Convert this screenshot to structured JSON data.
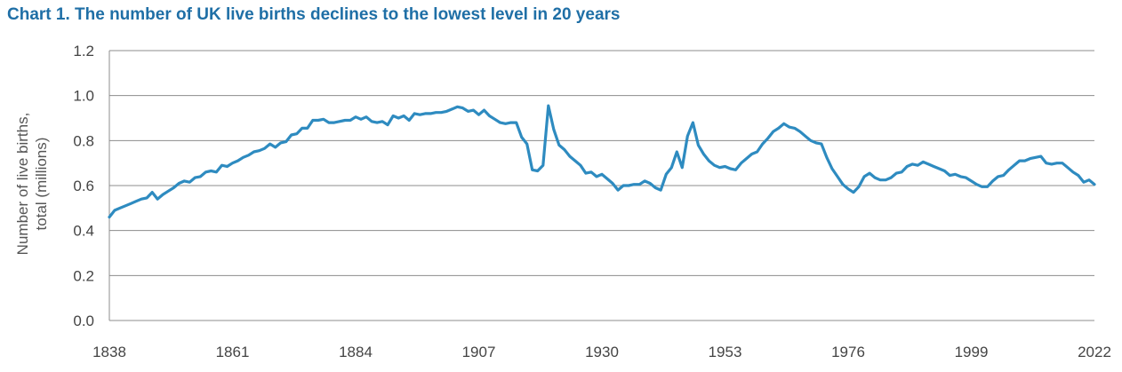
{
  "chart_data": {
    "type": "line",
    "title": "Chart 1. The number of UK live births declines to the lowest level in 20 years",
    "xlabel": "",
    "ylabel_lines": [
      "Number of live births,",
      "total (millions)"
    ],
    "xlim": [
      1838,
      2022
    ],
    "ylim": [
      0,
      1.2
    ],
    "x_ticks": [
      1838,
      1861,
      1884,
      1907,
      1930,
      1953,
      1976,
      1999,
      2022
    ],
    "y_ticks": [
      0.0,
      0.2,
      0.4,
      0.6,
      0.8,
      1.0,
      1.2
    ],
    "y_tick_labels": [
      "0.0",
      "0.2",
      "0.4",
      "0.6",
      "0.8",
      "1.0",
      "1.2"
    ],
    "grid": "horizontal",
    "legend": "none",
    "series": [
      {
        "color": "#2e8bc0",
        "points": [
          [
            1838,
            0.46
          ],
          [
            1839,
            0.49
          ],
          [
            1840,
            0.5
          ],
          [
            1841,
            0.51
          ],
          [
            1842,
            0.52
          ],
          [
            1843,
            0.53
          ],
          [
            1844,
            0.54
          ],
          [
            1845,
            0.545
          ],
          [
            1846,
            0.57
          ],
          [
            1847,
            0.54
          ],
          [
            1848,
            0.56
          ],
          [
            1849,
            0.575
          ],
          [
            1850,
            0.59
          ],
          [
            1851,
            0.61
          ],
          [
            1852,
            0.62
          ],
          [
            1853,
            0.615
          ],
          [
            1854,
            0.635
          ],
          [
            1855,
            0.64
          ],
          [
            1856,
            0.66
          ],
          [
            1857,
            0.665
          ],
          [
            1858,
            0.66
          ],
          [
            1859,
            0.69
          ],
          [
            1860,
            0.685
          ],
          [
            1861,
            0.7
          ],
          [
            1862,
            0.71
          ],
          [
            1863,
            0.725
          ],
          [
            1864,
            0.735
          ],
          [
            1865,
            0.75
          ],
          [
            1866,
            0.755
          ],
          [
            1867,
            0.765
          ],
          [
            1868,
            0.785
          ],
          [
            1869,
            0.77
          ],
          [
            1870,
            0.79
          ],
          [
            1871,
            0.795
          ],
          [
            1872,
            0.825
          ],
          [
            1873,
            0.83
          ],
          [
            1874,
            0.855
          ],
          [
            1875,
            0.855
          ],
          [
            1876,
            0.89
          ],
          [
            1877,
            0.89
          ],
          [
            1878,
            0.895
          ],
          [
            1879,
            0.88
          ],
          [
            1880,
            0.88
          ],
          [
            1881,
            0.885
          ],
          [
            1882,
            0.89
          ],
          [
            1883,
            0.89
          ],
          [
            1884,
            0.905
          ],
          [
            1885,
            0.895
          ],
          [
            1886,
            0.905
          ],
          [
            1887,
            0.885
          ],
          [
            1888,
            0.88
          ],
          [
            1889,
            0.885
          ],
          [
            1890,
            0.87
          ],
          [
            1891,
            0.91
          ],
          [
            1892,
            0.9
          ],
          [
            1893,
            0.91
          ],
          [
            1894,
            0.89
          ],
          [
            1895,
            0.92
          ],
          [
            1896,
            0.915
          ],
          [
            1897,
            0.92
          ],
          [
            1898,
            0.92
          ],
          [
            1899,
            0.925
          ],
          [
            1900,
            0.925
          ],
          [
            1901,
            0.93
          ],
          [
            1902,
            0.94
          ],
          [
            1903,
            0.95
          ],
          [
            1904,
            0.945
          ],
          [
            1905,
            0.93
          ],
          [
            1906,
            0.935
          ],
          [
            1907,
            0.915
          ],
          [
            1908,
            0.935
          ],
          [
            1909,
            0.91
          ],
          [
            1910,
            0.895
          ],
          [
            1911,
            0.88
          ],
          [
            1912,
            0.875
          ],
          [
            1913,
            0.88
          ],
          [
            1914,
            0.88
          ],
          [
            1915,
            0.815
          ],
          [
            1916,
            0.785
          ],
          [
            1917,
            0.67
          ],
          [
            1918,
            0.665
          ],
          [
            1919,
            0.69
          ],
          [
            1920,
            0.955
          ],
          [
            1921,
            0.85
          ],
          [
            1922,
            0.78
          ],
          [
            1923,
            0.76
          ],
          [
            1924,
            0.73
          ],
          [
            1925,
            0.71
          ],
          [
            1926,
            0.69
          ],
          [
            1927,
            0.655
          ],
          [
            1928,
            0.66
          ],
          [
            1929,
            0.64
          ],
          [
            1930,
            0.65
          ],
          [
            1931,
            0.63
          ],
          [
            1932,
            0.61
          ],
          [
            1933,
            0.58
          ],
          [
            1934,
            0.6
          ],
          [
            1935,
            0.6
          ],
          [
            1936,
            0.605
          ],
          [
            1937,
            0.605
          ],
          [
            1938,
            0.62
          ],
          [
            1939,
            0.61
          ],
          [
            1940,
            0.59
          ],
          [
            1941,
            0.58
          ],
          [
            1942,
            0.65
          ],
          [
            1943,
            0.68
          ],
          [
            1944,
            0.75
          ],
          [
            1945,
            0.68
          ],
          [
            1946,
            0.82
          ],
          [
            1947,
            0.88
          ],
          [
            1948,
            0.78
          ],
          [
            1949,
            0.74
          ],
          [
            1950,
            0.71
          ],
          [
            1951,
            0.69
          ],
          [
            1952,
            0.68
          ],
          [
            1953,
            0.685
          ],
          [
            1954,
            0.675
          ],
          [
            1955,
            0.67
          ],
          [
            1956,
            0.7
          ],
          [
            1957,
            0.72
          ],
          [
            1958,
            0.74
          ],
          [
            1959,
            0.75
          ],
          [
            1960,
            0.785
          ],
          [
            1961,
            0.81
          ],
          [
            1962,
            0.84
          ],
          [
            1963,
            0.855
          ],
          [
            1964,
            0.875
          ],
          [
            1965,
            0.86
          ],
          [
            1966,
            0.855
          ],
          [
            1967,
            0.84
          ],
          [
            1968,
            0.82
          ],
          [
            1969,
            0.8
          ],
          [
            1970,
            0.79
          ],
          [
            1971,
            0.785
          ],
          [
            1972,
            0.725
          ],
          [
            1973,
            0.675
          ],
          [
            1974,
            0.64
          ],
          [
            1975,
            0.605
          ],
          [
            1976,
            0.585
          ],
          [
            1977,
            0.57
          ],
          [
            1978,
            0.595
          ],
          [
            1979,
            0.64
          ],
          [
            1980,
            0.655
          ],
          [
            1981,
            0.635
          ],
          [
            1982,
            0.625
          ],
          [
            1983,
            0.625
          ],
          [
            1984,
            0.635
          ],
          [
            1985,
            0.655
          ],
          [
            1986,
            0.66
          ],
          [
            1987,
            0.685
          ],
          [
            1988,
            0.695
          ],
          [
            1989,
            0.69
          ],
          [
            1990,
            0.705
          ],
          [
            1991,
            0.695
          ],
          [
            1992,
            0.685
          ],
          [
            1993,
            0.675
          ],
          [
            1994,
            0.665
          ],
          [
            1995,
            0.645
          ],
          [
            1996,
            0.65
          ],
          [
            1997,
            0.64
          ],
          [
            1998,
            0.635
          ],
          [
            1999,
            0.62
          ],
          [
            2000,
            0.605
          ],
          [
            2001,
            0.595
          ],
          [
            2002,
            0.595
          ],
          [
            2003,
            0.62
          ],
          [
            2004,
            0.64
          ],
          [
            2005,
            0.645
          ],
          [
            2006,
            0.67
          ],
          [
            2007,
            0.69
          ],
          [
            2008,
            0.71
          ],
          [
            2009,
            0.71
          ],
          [
            2010,
            0.72
          ],
          [
            2011,
            0.725
          ],
          [
            2012,
            0.73
          ],
          [
            2013,
            0.7
          ],
          [
            2014,
            0.695
          ],
          [
            2015,
            0.7
          ],
          [
            2016,
            0.7
          ],
          [
            2017,
            0.68
          ],
          [
            2018,
            0.66
          ],
          [
            2019,
            0.645
          ],
          [
            2020,
            0.615
          ],
          [
            2021,
            0.625
          ],
          [
            2022,
            0.605
          ]
        ]
      }
    ]
  }
}
